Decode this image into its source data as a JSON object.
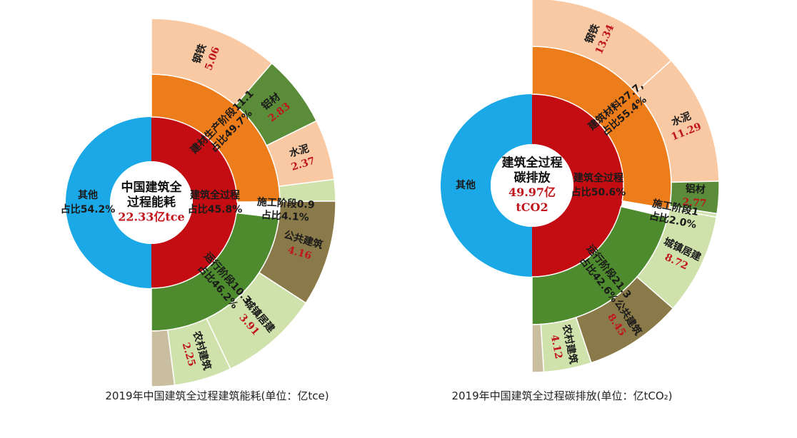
{
  "colors": {
    "other_blue": "#1aa8e6",
    "total_red": "#c30d12",
    "material_orange": "#ed7d1b",
    "material_light": "#f9c9a3",
    "aluminium_green": "#5b8c3a",
    "operation_green": "#4e8a2e",
    "operation_light": "#cfe2ac",
    "public_brown": "#8a7a49",
    "construction_tan": "#c9bfa0",
    "value_red": "#c0151b",
    "white": "#ffffff"
  },
  "chart_data": [
    {
      "type": "sunburst",
      "title": "2019年中国建筑全过程建筑能耗(单位：亿tce)",
      "center": {
        "line1": "中国建筑全",
        "line2": "过程能耗",
        "value": "22.33亿tce"
      },
      "total_arc": {
        "line1": "建筑全过程",
        "line2": "占比45.8%",
        "share": 45.8
      },
      "other": {
        "line1": "其他",
        "line2": "占比54.2%",
        "share": 54.2
      },
      "stages": [
        {
          "line1": "建材生产阶段11.1",
          "line2": "占比49.7%",
          "value": 11.1,
          "share": 49.7,
          "color": "material_orange"
        },
        {
          "line1": "施工阶段0.9",
          "line2": "占比4.1%",
          "value": 0.9,
          "share": 4.1,
          "color": "white"
        },
        {
          "line1": "运行阶段10.3",
          "line2": "占比46.2%",
          "value": 10.3,
          "share": 46.2,
          "color": "operation_green"
        }
      ],
      "details": [
        {
          "name": "钢铁",
          "value": "5.06",
          "num": 5.06,
          "stage": 0,
          "color": "material_light"
        },
        {
          "name": "铝材",
          "value": "2.83",
          "num": 2.83,
          "stage": 0,
          "color": "aluminium_green"
        },
        {
          "name": "水泥",
          "value": "2.37",
          "num": 2.37,
          "stage": 0,
          "color": "material_light"
        },
        {
          "name": "",
          "value": "",
          "num": 0.84,
          "stage": 0,
          "color": "operation_light"
        },
        {
          "name": "公共建筑",
          "value": "4.16",
          "num": 4.16,
          "stage": 2,
          "color": "public_brown"
        },
        {
          "name": "城镇居建",
          "value": "3.91",
          "num": 3.91,
          "stage": 2,
          "color": "operation_light"
        },
        {
          "name": "农村建筑",
          "value": "2.25",
          "num": 2.25,
          "stage": 2,
          "color": "operation_light"
        },
        {
          "name": "",
          "value": "",
          "num": 0.9,
          "stage": 1,
          "color": "construction_tan"
        }
      ]
    },
    {
      "type": "sunburst",
      "title": "2019年中国建筑全过程碳排放(单位：亿tCO₂)",
      "center": {
        "line1": "建筑全过程",
        "line2": "碳排放",
        "value": "49.97亿",
        "value2": "tCO2"
      },
      "total_arc": {
        "line1": "建筑全过程",
        "line2": "占比50.6%",
        "share": 50.6
      },
      "other": {
        "line1": "其他",
        "line2": "",
        "share": 49.4
      },
      "stages": [
        {
          "line1": "建筑材料27.7,",
          "line2": "占比55.4%",
          "value": 27.7,
          "share": 55.4,
          "color": "material_orange"
        },
        {
          "line1": "施工阶段1",
          "line2": "占比2.0%",
          "value": 1.0,
          "share": 2.0,
          "color": "white"
        },
        {
          "line1": "运行阶段21.3",
          "line2": "占比42.6%",
          "value": 21.3,
          "share": 42.6,
          "color": "operation_green"
        }
      ],
      "details": [
        {
          "name": "钢铁",
          "value": "13.34",
          "num": 13.34,
          "stage": 0,
          "color": "material_light"
        },
        {
          "name": "水泥",
          "value": "11.29",
          "num": 11.29,
          "stage": 0,
          "color": "material_light"
        },
        {
          "name": "铝材",
          "value": "2.77",
          "num": 2.77,
          "stage": 0,
          "color": "aluminium_green"
        },
        {
          "name": "",
          "value": "",
          "num": 0.3,
          "stage": 0,
          "color": "operation_light"
        },
        {
          "name": "城镇居建",
          "value": "8.72",
          "num": 8.72,
          "stage": 2,
          "color": "operation_light"
        },
        {
          "name": "公共建筑",
          "value": "8.45",
          "num": 8.45,
          "stage": 2,
          "color": "public_brown"
        },
        {
          "name": "农村建筑",
          "value": "4.12",
          "num": 4.12,
          "stage": 2,
          "color": "operation_light"
        },
        {
          "name": "",
          "value": "",
          "num": 1.0,
          "stage": 1,
          "color": "construction_tan"
        }
      ]
    }
  ]
}
